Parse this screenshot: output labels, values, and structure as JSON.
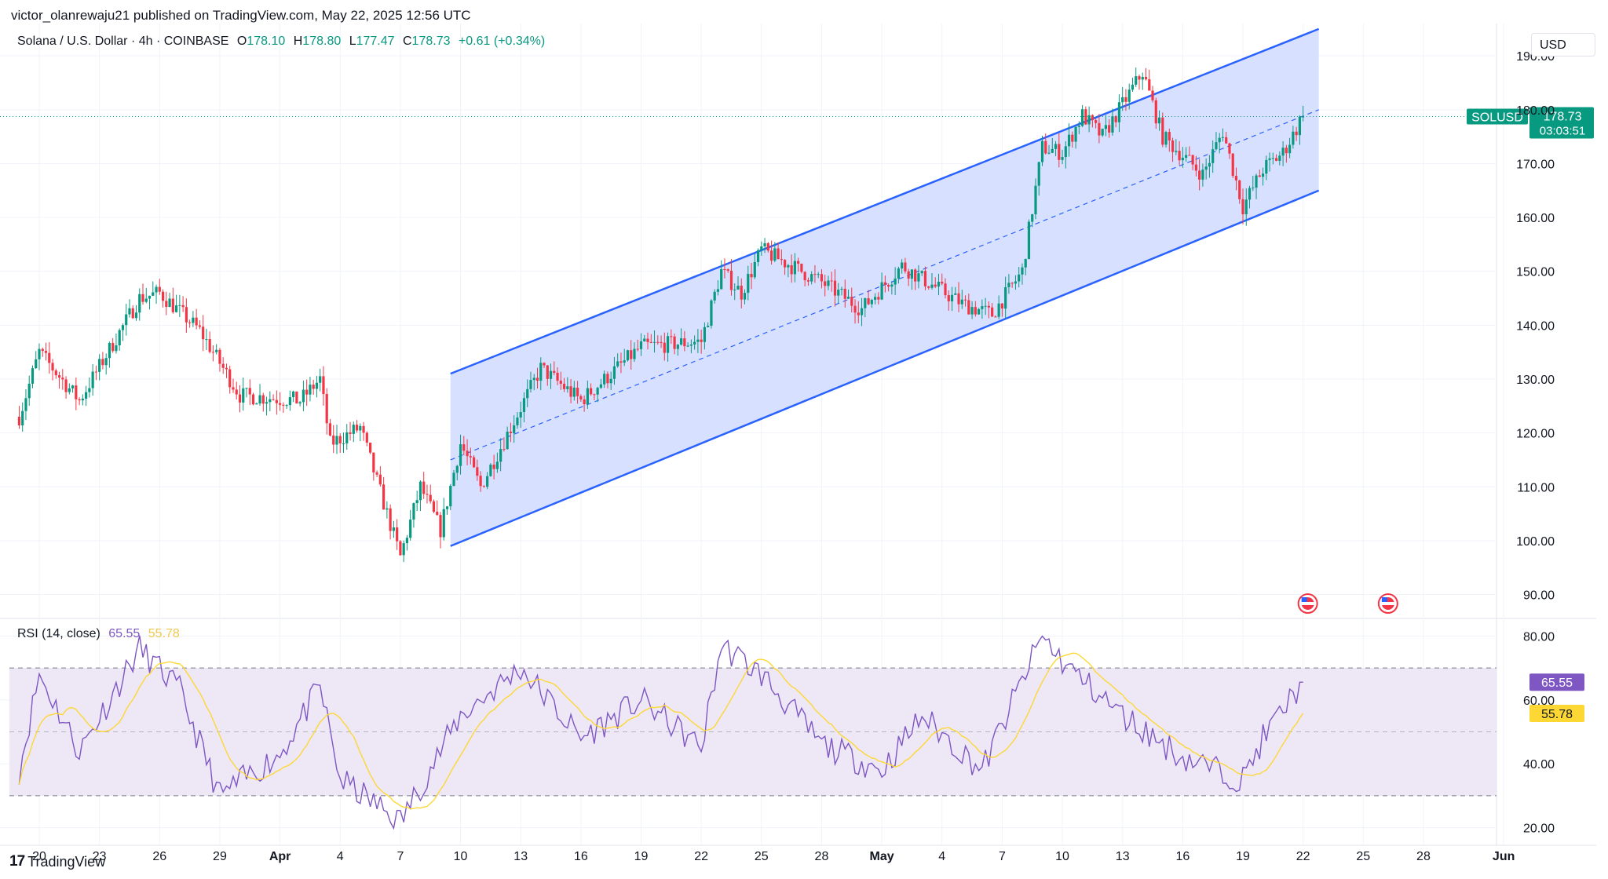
{
  "header": {
    "published": "victor_olanrewaju21 published on TradingView.com, May 22, 2025 12:56 UTC"
  },
  "legend": {
    "symbol": "Solana / U.S. Dollar · 4h · COINBASE",
    "o_label": "O",
    "o": "178.10",
    "h_label": "H",
    "h": "178.80",
    "l_label": "L",
    "l": "177.47",
    "c_label": "C",
    "c": "178.73",
    "change": "+0.61 (+0.34%)"
  },
  "currency_button": "USD",
  "price_tag": {
    "ticker": "SOLUSD",
    "price": "178.73",
    "countdown": "03:03:51"
  },
  "rsi": {
    "label": "RSI (14, close)",
    "value": "65.55",
    "ma_value": "55.78"
  },
  "footer": {
    "brand": "TradingView",
    "logo_text": "17"
  },
  "colors": {
    "up": "#089981",
    "down": "#f23645",
    "channel_line": "#2962ff",
    "channel_fill": "#d1dbff",
    "rsi_line": "#7e57c2",
    "rsi_ma": "#fdd835",
    "rsi_band": "#ede7f6",
    "last_price": "#089981"
  },
  "chart_data": {
    "type": "candlestick",
    "price_axis": {
      "ticks": [
        "90.00",
        "100.00",
        "110.00",
        "120.00",
        "130.00",
        "140.00",
        "150.00",
        "160.00",
        "170.00",
        "180.00",
        "190.00"
      ],
      "range": [
        86,
        196
      ]
    },
    "rsi_axis": {
      "ticks": [
        "20.00",
        "40.00",
        "60.00",
        "80.00"
      ],
      "range": [
        15,
        85
      ],
      "bands": [
        30,
        70
      ]
    },
    "time_axis": {
      "labels": [
        "20",
        "23",
        "26",
        "29",
        "Apr",
        "4",
        "7",
        "10",
        "13",
        "16",
        "19",
        "22",
        "25",
        "28",
        "May",
        "4",
        "7",
        "10",
        "13",
        "16",
        "19",
        "22",
        "25",
        "28",
        "Jun"
      ],
      "bold": [
        "Apr",
        "May",
        "Jun"
      ]
    },
    "interval": "4h",
    "last_price": 178.73,
    "key_points": [
      {
        "date": "Mar 19",
        "close": 123
      },
      {
        "date": "Mar 20",
        "close": 135
      },
      {
        "date": "Mar 22",
        "close": 126
      },
      {
        "date": "Mar 25",
        "close": 145
      },
      {
        "date": "Mar 26",
        "close": 146
      },
      {
        "date": "Mar 28",
        "close": 139
      },
      {
        "date": "Mar 30",
        "close": 127
      },
      {
        "date": "Apr 2",
        "close": 126
      },
      {
        "date": "Apr 3",
        "close": 130
      },
      {
        "date": "Apr 3.5",
        "close": 118
      },
      {
        "date": "Apr 5",
        "close": 121
      },
      {
        "date": "Apr 7",
        "close": 97
      },
      {
        "date": "Apr 8",
        "close": 110
      },
      {
        "date": "Apr 9",
        "close": 102
      },
      {
        "date": "Apr 10",
        "close": 118
      },
      {
        "date": "Apr 11",
        "close": 110
      },
      {
        "date": "Apr 14",
        "close": 132
      },
      {
        "date": "Apr 16",
        "close": 126
      },
      {
        "date": "Apr 19",
        "close": 136
      },
      {
        "date": "Apr 22",
        "close": 137
      },
      {
        "date": "Apr 23",
        "close": 150
      },
      {
        "date": "Apr 24",
        "close": 146
      },
      {
        "date": "Apr 25",
        "close": 154
      },
      {
        "date": "Apr 28",
        "close": 148
      },
      {
        "date": "Apr 30",
        "close": 143
      },
      {
        "date": "May 2",
        "close": 151
      },
      {
        "date": "May 5",
        "close": 144
      },
      {
        "date": "May 6.5",
        "close": 142
      },
      {
        "date": "May 8",
        "close": 150
      },
      {
        "date": "May 9",
        "close": 173
      },
      {
        "date": "May 10",
        "close": 172
      },
      {
        "date": "May 11",
        "close": 179
      },
      {
        "date": "May 12",
        "close": 175
      },
      {
        "date": "May 14",
        "close": 187
      },
      {
        "date": "May 15",
        "close": 175
      },
      {
        "date": "May 17",
        "close": 168
      },
      {
        "date": "May 18",
        "close": 176
      },
      {
        "date": "May 19",
        "close": 162
      },
      {
        "date": "May 20",
        "close": 169
      },
      {
        "date": "May 21",
        "close": 172
      },
      {
        "date": "May 22",
        "close": 178.73
      }
    ],
    "rsi_key_points": [
      {
        "date": "Mar 19",
        "rsi": 38
      },
      {
        "date": "Mar 20",
        "rsi": 68
      },
      {
        "date": "Mar 22",
        "rsi": 44
      },
      {
        "date": "Mar 25",
        "rsi": 76
      },
      {
        "date": "Mar 27",
        "rsi": 63
      },
      {
        "date": "Mar 29",
        "rsi": 30
      },
      {
        "date": "Apr 1",
        "rsi": 43
      },
      {
        "date": "Apr 3",
        "rsi": 64
      },
      {
        "date": "Apr 4",
        "rsi": 35
      },
      {
        "date": "Apr 7",
        "rsi": 22
      },
      {
        "date": "Apr 10",
        "rsi": 55
      },
      {
        "date": "Apr 13",
        "rsi": 70
      },
      {
        "date": "Apr 16",
        "rsi": 48
      },
      {
        "date": "Apr 19",
        "rsi": 60
      },
      {
        "date": "Apr 22",
        "rsi": 45
      },
      {
        "date": "Apr 23",
        "rsi": 77
      },
      {
        "date": "Apr 25",
        "rsi": 68
      },
      {
        "date": "Apr 28",
        "rsi": 46
      },
      {
        "date": "May 1",
        "rsi": 38
      },
      {
        "date": "May 3",
        "rsi": 55
      },
      {
        "date": "May 6",
        "rsi": 38
      },
      {
        "date": "May 9",
        "rsi": 80
      },
      {
        "date": "May 10",
        "rsi": 72
      },
      {
        "date": "May 13",
        "rsi": 55
      },
      {
        "date": "May 16",
        "rsi": 42
      },
      {
        "date": "May 19",
        "rsi": 35
      },
      {
        "date": "May 20",
        "rsi": 48
      },
      {
        "date": "May 22",
        "rsi": 65.55
      }
    ],
    "channel": {
      "upper": [
        {
          "date": "Apr 9.5",
          "price": 131
        },
        {
          "date": "May 22",
          "price": 195
        }
      ],
      "lower": [
        {
          "date": "Apr 9.5",
          "price": 99
        },
        {
          "date": "May 22",
          "price": 165
        }
      ],
      "mid": [
        {
          "date": "Apr 9.5",
          "price": 115
        },
        {
          "date": "May 22",
          "price": 180
        }
      ]
    },
    "events": [
      {
        "date": "May 22",
        "type": "us-flag"
      },
      {
        "date": "May 26",
        "type": "us-flag"
      }
    ]
  }
}
